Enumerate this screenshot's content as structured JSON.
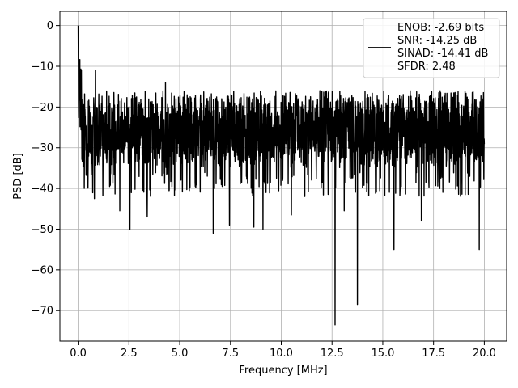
{
  "chart_data": {
    "type": "line",
    "title": "",
    "xlabel": "Frequency [MHz]",
    "ylabel": "PSD [dB]",
    "xlim": [
      -0.9,
      21.1
    ],
    "ylim": [
      -77.5,
      3.5
    ],
    "xticks": [
      0.0,
      2.5,
      5.0,
      7.5,
      10.0,
      12.5,
      15.0,
      17.5,
      20.0
    ],
    "xtick_labels": [
      "0.0",
      "2.5",
      "5.0",
      "7.5",
      "10.0",
      "12.5",
      "15.0",
      "17.5",
      "20.0"
    ],
    "yticks": [
      0,
      -10,
      -20,
      -30,
      -40,
      -50,
      -60,
      -70
    ],
    "ytick_labels": [
      "0",
      "−10",
      "−20",
      "−30",
      "−40",
      "−50",
      "−60",
      "−70"
    ],
    "grid": true,
    "legend": {
      "placement": "top-right",
      "entries": [
        "ENOB: -2.69 bits",
        "SNR: -14.25 dB",
        "SINAD: -14.41 dB",
        "SFDR: 2.48"
      ]
    },
    "series": [
      {
        "color": "#000000",
        "x_range": [
          0.0,
          20.0
        ],
        "noise_floor_range": [
          -35,
          -17
        ],
        "peaks": [
          {
            "x": 0.0,
            "y": 0.0
          },
          {
            "x": 0.05,
            "y": -12.5
          },
          {
            "x": 0.85,
            "y": -11.0
          },
          {
            "x": 4.3,
            "y": -14.0
          },
          {
            "x": 11.9,
            "y": -16.0
          },
          {
            "x": 19.9,
            "y": -18.0
          }
        ],
        "dips": [
          {
            "x": 0.3,
            "y": -40.0
          },
          {
            "x": 0.8,
            "y": -42.5
          },
          {
            "x": 2.05,
            "y": -45.5
          },
          {
            "x": 2.55,
            "y": -50.0
          },
          {
            "x": 3.4,
            "y": -47.0
          },
          {
            "x": 6.65,
            "y": -51.0
          },
          {
            "x": 7.45,
            "y": -49.0
          },
          {
            "x": 8.65,
            "y": -49.5
          },
          {
            "x": 9.1,
            "y": -50.0
          },
          {
            "x": 10.5,
            "y": -46.5
          },
          {
            "x": 12.65,
            "y": -73.5
          },
          {
            "x": 13.1,
            "y": -45.5
          },
          {
            "x": 13.75,
            "y": -68.5
          },
          {
            "x": 15.55,
            "y": -55.0
          },
          {
            "x": 16.9,
            "y": -48.0
          },
          {
            "x": 19.75,
            "y": -55.0
          }
        ]
      }
    ]
  }
}
